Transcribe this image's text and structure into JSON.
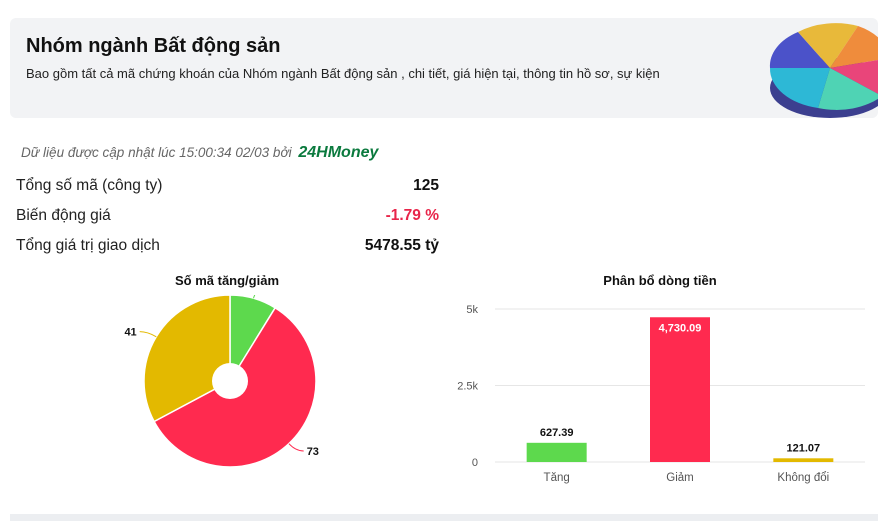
{
  "header": {
    "title": "Nhóm ngành Bất động sản",
    "description": "Bao gồm tất cả mã chứng khoán của Nhóm ngành Bất động sản , chi tiết, giá hiện tại, thông tin hồ sơ, sự kiện"
  },
  "update": {
    "text": "Dữ liệu được cập nhật lúc 15:00:34 02/03 bởi",
    "brand": "24HMoney"
  },
  "stats": [
    {
      "label": "Tổng số mã (công ty)",
      "value": "125"
    },
    {
      "label": "Biến động giá",
      "value": "-1.79 %"
    },
    {
      "label": "Tổng giá trị giao dịch",
      "value": "5478.55 tỷ"
    }
  ],
  "colors": {
    "up": "#5dd94d",
    "down": "#ff2a4f",
    "flat": "#e3b900",
    "brand": "#0b7a3e"
  },
  "chart_data": [
    {
      "type": "pie",
      "title": "Số mã tăng/giảm",
      "slices": [
        {
          "category": "Tăng",
          "value": 11,
          "color": "#5dd94d"
        },
        {
          "category": "Giảm",
          "value": 73,
          "color": "#ff2a4f"
        },
        {
          "category": "Không đổi",
          "value": 41,
          "color": "#e3b900"
        }
      ],
      "donut": true
    },
    {
      "type": "bar",
      "title": "Phân bổ dòng tiền",
      "categories": [
        "Tăng",
        "Giảm",
        "Không đổi"
      ],
      "values": [
        627.39,
        4730.09,
        121.07
      ],
      "value_labels": [
        "627.39",
        "4,730.09",
        "121.07"
      ],
      "colors": [
        "#5dd94d",
        "#ff2a4f",
        "#e3b900"
      ],
      "yticks": [
        "0",
        "2.5k",
        "5k"
      ],
      "ylim": [
        0,
        5000
      ],
      "grid": true
    }
  ]
}
